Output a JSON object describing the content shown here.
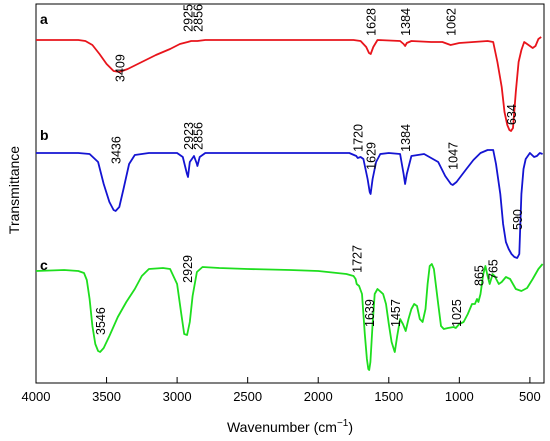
{
  "chart_data": {
    "type": "line",
    "xlabel": "Wavenumber (cm",
    "xlabel_sup": "−1",
    "xlabel_end": ")",
    "ylabel": "Transmittance",
    "xlim": [
      4000,
      400
    ],
    "x_reversed": true,
    "x_ticks": [
      "4000",
      "3500",
      "3000",
      "2500",
      "2000",
      "1500",
      "1000",
      "500"
    ],
    "grid": false,
    "series": [
      {
        "name": "a",
        "color": "#e8141b",
        "points": [
          [
            4000,
            0.08
          ],
          [
            3700,
            0.08
          ],
          [
            3650,
            0.09
          ],
          [
            3600,
            0.13
          ],
          [
            3550,
            0.22
          ],
          [
            3500,
            0.32
          ],
          [
            3450,
            0.39
          ],
          [
            3409,
            0.4
          ],
          [
            3350,
            0.37
          ],
          [
            3250,
            0.3
          ],
          [
            3150,
            0.23
          ],
          [
            3050,
            0.17
          ],
          [
            2980,
            0.12
          ],
          [
            2925,
            0.1
          ],
          [
            2900,
            0.09
          ],
          [
            2856,
            0.09
          ],
          [
            2800,
            0.08
          ],
          [
            2500,
            0.08
          ],
          [
            2000,
            0.08
          ],
          [
            1750,
            0.08
          ],
          [
            1700,
            0.09
          ],
          [
            1660,
            0.15
          ],
          [
            1640,
            0.21
          ],
          [
            1628,
            0.22
          ],
          [
            1610,
            0.15
          ],
          [
            1580,
            0.08
          ],
          [
            1420,
            0.09
          ],
          [
            1395,
            0.12
          ],
          [
            1384,
            0.14
          ],
          [
            1372,
            0.11
          ],
          [
            1340,
            0.09
          ],
          [
            1200,
            0.1
          ],
          [
            1120,
            0.1
          ],
          [
            1062,
            0.13
          ],
          [
            1000,
            0.11
          ],
          [
            900,
            0.1
          ],
          [
            800,
            0.09
          ],
          [
            760,
            0.1
          ],
          [
            730,
            0.3
          ],
          [
            700,
            0.55
          ],
          [
            680,
            0.8
          ],
          [
            660,
            0.93
          ],
          [
            645,
            0.98
          ],
          [
            634,
            0.99
          ],
          [
            620,
            0.96
          ],
          [
            600,
            0.6
          ],
          [
            580,
            0.3
          ],
          [
            560,
            0.18
          ],
          [
            540,
            0.1
          ],
          [
            520,
            0.12
          ],
          [
            500,
            0.14
          ],
          [
            480,
            0.16
          ],
          [
            460,
            0.14
          ],
          [
            440,
            0.07
          ],
          [
            420,
            0.05
          ]
        ]
      },
      {
        "name": "b",
        "color": "#1414d2",
        "points": [
          [
            4000,
            0.09
          ],
          [
            3700,
            0.09
          ],
          [
            3620,
            0.1
          ],
          [
            3560,
            0.18
          ],
          [
            3520,
            0.4
          ],
          [
            3480,
            0.58
          ],
          [
            3450,
            0.66
          ],
          [
            3436,
            0.67
          ],
          [
            3410,
            0.63
          ],
          [
            3380,
            0.45
          ],
          [
            3340,
            0.2
          ],
          [
            3300,
            0.11
          ],
          [
            3200,
            0.09
          ],
          [
            3000,
            0.09
          ],
          [
            2960,
            0.13
          ],
          [
            2930,
            0.3
          ],
          [
            2923,
            0.33
          ],
          [
            2910,
            0.18
          ],
          [
            2880,
            0.12
          ],
          [
            2860,
            0.2
          ],
          [
            2856,
            0.22
          ],
          [
            2840,
            0.13
          ],
          [
            2800,
            0.09
          ],
          [
            2500,
            0.09
          ],
          [
            2000,
            0.09
          ],
          [
            1780,
            0.09
          ],
          [
            1730,
            0.12
          ],
          [
            1720,
            0.14
          ],
          [
            1700,
            0.13
          ],
          [
            1680,
            0.15
          ],
          [
            1650,
            0.35
          ],
          [
            1635,
            0.48
          ],
          [
            1629,
            0.5
          ],
          [
            1615,
            0.35
          ],
          [
            1590,
            0.18
          ],
          [
            1560,
            0.1
          ],
          [
            1500,
            0.09
          ],
          [
            1420,
            0.1
          ],
          [
            1395,
            0.3
          ],
          [
            1384,
            0.4
          ],
          [
            1372,
            0.3
          ],
          [
            1340,
            0.12
          ],
          [
            1250,
            0.1
          ],
          [
            1150,
            0.18
          ],
          [
            1100,
            0.32
          ],
          [
            1060,
            0.4
          ],
          [
            1047,
            0.41
          ],
          [
            1020,
            0.38
          ],
          [
            950,
            0.25
          ],
          [
            900,
            0.16
          ],
          [
            850,
            0.09
          ],
          [
            800,
            0.06
          ],
          [
            760,
            0.06
          ],
          [
            740,
            0.2
          ],
          [
            710,
            0.5
          ],
          [
            690,
            0.8
          ],
          [
            670,
            0.98
          ],
          [
            650,
            1.05
          ],
          [
            630,
            1.1
          ],
          [
            610,
            1.13
          ],
          [
            590,
            1.14
          ],
          [
            575,
            1.1
          ],
          [
            560,
            0.5
          ],
          [
            545,
            0.25
          ],
          [
            530,
            0.15
          ],
          [
            500,
            0.09
          ],
          [
            470,
            0.13
          ],
          [
            450,
            0.12
          ],
          [
            430,
            0.09
          ],
          [
            410,
            0.1
          ]
        ]
      },
      {
        "name": "c",
        "color": "#1ede1e",
        "points": [
          [
            4000,
            0.07
          ],
          [
            3800,
            0.06
          ],
          [
            3700,
            0.07
          ],
          [
            3660,
            0.09
          ],
          [
            3640,
            0.16
          ],
          [
            3620,
            0.35
          ],
          [
            3600,
            0.62
          ],
          [
            3580,
            0.8
          ],
          [
            3560,
            0.87
          ],
          [
            3546,
            0.88
          ],
          [
            3520,
            0.84
          ],
          [
            3480,
            0.72
          ],
          [
            3420,
            0.53
          ],
          [
            3360,
            0.38
          ],
          [
            3300,
            0.25
          ],
          [
            3250,
            0.12
          ],
          [
            3200,
            0.05
          ],
          [
            3100,
            0.04
          ],
          [
            3050,
            0.05
          ],
          [
            3000,
            0.2
          ],
          [
            2970,
            0.5
          ],
          [
            2950,
            0.7
          ],
          [
            2929,
            0.71
          ],
          [
            2910,
            0.58
          ],
          [
            2890,
            0.32
          ],
          [
            2860,
            0.08
          ],
          [
            2820,
            0.03
          ],
          [
            2700,
            0.04
          ],
          [
            2500,
            0.05
          ],
          [
            2200,
            0.06
          ],
          [
            2000,
            0.07
          ],
          [
            1800,
            0.1
          ],
          [
            1750,
            0.12
          ],
          [
            1735,
            0.15
          ],
          [
            1727,
            0.2
          ],
          [
            1710,
            0.22
          ],
          [
            1690,
            0.3
          ],
          [
            1670,
            0.7
          ],
          [
            1655,
            0.95
          ],
          [
            1645,
            1.05
          ],
          [
            1639,
            1.06
          ],
          [
            1630,
            0.98
          ],
          [
            1615,
            0.6
          ],
          [
            1600,
            0.3
          ],
          [
            1580,
            0.25
          ],
          [
            1540,
            0.3
          ],
          [
            1520,
            0.4
          ],
          [
            1500,
            0.6
          ],
          [
            1480,
            0.78
          ],
          [
            1460,
            0.87
          ],
          [
            1457,
            0.88
          ],
          [
            1440,
            0.72
          ],
          [
            1420,
            0.55
          ],
          [
            1400,
            0.6
          ],
          [
            1380,
            0.67
          ],
          [
            1360,
            0.55
          ],
          [
            1340,
            0.45
          ],
          [
            1320,
            0.4
          ],
          [
            1300,
            0.42
          ],
          [
            1280,
            0.55
          ],
          [
            1260,
            0.58
          ],
          [
            1240,
            0.45
          ],
          [
            1225,
            0.2
          ],
          [
            1210,
            0.02
          ],
          [
            1195,
            0.0
          ],
          [
            1180,
            0.05
          ],
          [
            1150,
            0.4
          ],
          [
            1130,
            0.62
          ],
          [
            1110,
            0.65
          ],
          [
            1080,
            0.64
          ],
          [
            1040,
            0.63
          ],
          [
            1025,
            0.64
          ],
          [
            1000,
            0.6
          ],
          [
            970,
            0.58
          ],
          [
            940,
            0.5
          ],
          [
            910,
            0.4
          ],
          [
            890,
            0.4
          ],
          [
            875,
            0.35
          ],
          [
            865,
            0.38
          ],
          [
            850,
            0.3
          ],
          [
            830,
            0.1
          ],
          [
            815,
            0.02
          ],
          [
            800,
            0.12
          ],
          [
            785,
            0.2
          ],
          [
            770,
            0.13
          ],
          [
            765,
            0.1
          ],
          [
            750,
            0.12
          ],
          [
            720,
            0.2
          ],
          [
            700,
            0.18
          ],
          [
            670,
            0.13
          ],
          [
            640,
            0.15
          ],
          [
            600,
            0.25
          ],
          [
            560,
            0.27
          ],
          [
            520,
            0.24
          ],
          [
            480,
            0.15
          ],
          [
            440,
            0.05
          ],
          [
            410,
            0.0
          ]
        ]
      }
    ],
    "peak_labels": [
      {
        "series": "a",
        "text": "3409",
        "x": 3409
      },
      {
        "series": "a",
        "text": "2925",
        "x": 2925
      },
      {
        "series": "a",
        "text": "2856",
        "x": 2856
      },
      {
        "series": "a",
        "text": "1628",
        "x": 1628
      },
      {
        "series": "a",
        "text": "1384",
        "x": 1384
      },
      {
        "series": "a",
        "text": "1062",
        "x": 1062
      },
      {
        "series": "a",
        "text": "634",
        "x": 634
      },
      {
        "series": "b",
        "text": "3436",
        "x": 3436
      },
      {
        "series": "b",
        "text": "2923",
        "x": 2923
      },
      {
        "series": "b",
        "text": "2856",
        "x": 2856
      },
      {
        "series": "b",
        "text": "1720",
        "x": 1720
      },
      {
        "series": "b",
        "text": "1629",
        "x": 1629
      },
      {
        "series": "b",
        "text": "1384",
        "x": 1384
      },
      {
        "series": "b",
        "text": "1047",
        "x": 1047
      },
      {
        "series": "b",
        "text": "590",
        "x": 590
      },
      {
        "series": "c",
        "text": "3546",
        "x": 3546
      },
      {
        "series": "c",
        "text": "2929",
        "x": 2929
      },
      {
        "series": "c",
        "text": "1727",
        "x": 1727
      },
      {
        "series": "c",
        "text": "1639",
        "x": 1639
      },
      {
        "series": "c",
        "text": "1457",
        "x": 1457
      },
      {
        "series": "c",
        "text": "1025",
        "x": 1025
      },
      {
        "series": "c",
        "text": "865",
        "x": 865
      },
      {
        "series": "c",
        "text": "765",
        "x": 765
      }
    ]
  }
}
